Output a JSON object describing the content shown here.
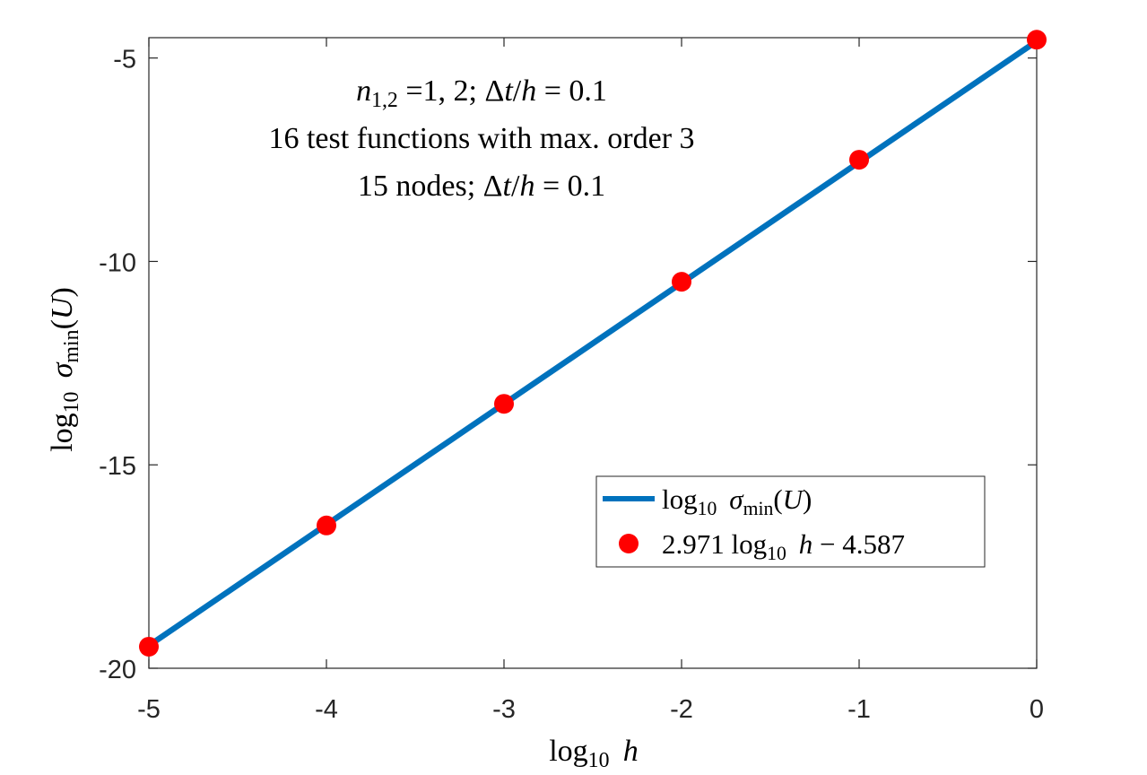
{
  "chart_data": {
    "type": "line",
    "x": [
      -5,
      -4,
      -3,
      -2,
      -1,
      0
    ],
    "series": [
      {
        "name": "log10 σmin(U)",
        "kind": "line",
        "color": "#0072BD",
        "x": [
          -5,
          0
        ],
        "y": [
          -19.442,
          -4.587
        ]
      },
      {
        "name": "2.971 log10 h − 4.587",
        "kind": "markers",
        "color": "#FF0000",
        "x": [
          -5,
          -4,
          -3,
          -2,
          -1,
          0
        ],
        "y": [
          -19.47,
          -16.49,
          -13.5,
          -10.5,
          -7.5,
          -4.55
        ]
      }
    ],
    "xlim": [
      -5,
      0
    ],
    "ylim": [
      -20,
      -4.5
    ],
    "xticks": [
      "-5",
      "-4",
      "-3",
      "-2",
      "-1",
      "0"
    ],
    "yticks": [
      "-5",
      "-10",
      "-15",
      "-20"
    ],
    "xlabel": "log10 h",
    "ylabel": "log10 σmin(U)",
    "annotations": [
      "n1,2 =1, 2; Δt/h = 0.1",
      "16 test functions with max. order 3",
      "15 nodes; Δt/h = 0.1"
    ],
    "grid": false,
    "legend_position": "bottom-right"
  }
}
